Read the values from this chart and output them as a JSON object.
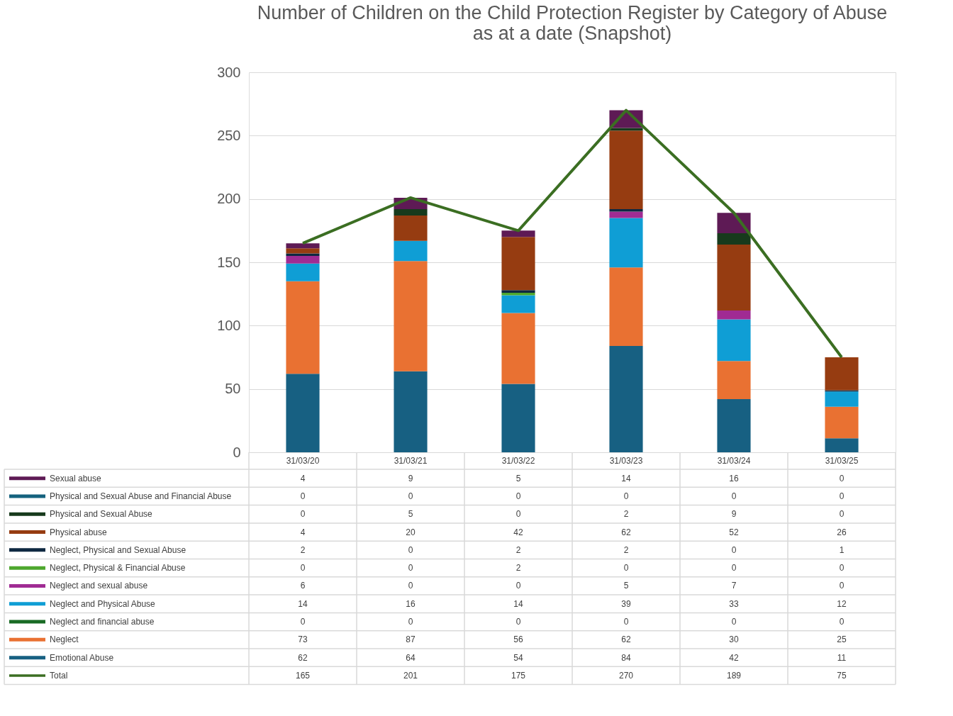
{
  "chart_data": {
    "type": "bar",
    "title": [
      "Number of Children on the Child Protection Register by Category of Abuse",
      "as at a date (Snapshot)"
    ],
    "categories": [
      "31/03/20",
      "31/03/21",
      "31/03/22",
      "31/03/23",
      "31/03/24",
      "31/03/25"
    ],
    "stacked": true,
    "ylim": [
      0,
      300
    ],
    "yticks": [
      0,
      50,
      100,
      150,
      200,
      250,
      300
    ],
    "grid": "y",
    "legend": "bottom",
    "series": [
      {
        "name": "Emotional Abuse",
        "color": "#176082",
        "values": [
          62,
          64,
          54,
          84,
          42,
          11
        ],
        "value_labels": [
          "62",
          "64",
          "54",
          "84",
          "42",
          "11"
        ]
      },
      {
        "name": "Neglect",
        "color": "#e97132",
        "values": [
          73,
          87,
          56,
          62,
          30,
          25
        ],
        "value_labels": [
          "73",
          "87",
          "56",
          "62",
          "30",
          "25"
        ]
      },
      {
        "name": "Neglect and financial abuse",
        "color": "#196b24",
        "values": [
          0,
          0,
          0,
          0,
          0,
          0
        ],
        "value_labels": [
          "0",
          "0",
          "0",
          "0",
          "0",
          "0"
        ]
      },
      {
        "name": "Neglect and Physical Abuse",
        "color": "#0f9ed5",
        "values": [
          14,
          16,
          14,
          39,
          33,
          12
        ],
        "value_labels": [
          "14",
          "16",
          "14",
          "39",
          "33",
          "12"
        ]
      },
      {
        "name": "Neglect and sexual abuse",
        "color": "#a02b93",
        "values": [
          6,
          0,
          0,
          5,
          7,
          0
        ],
        "value_labels": [
          "6",
          "0",
          "0",
          "5",
          "7",
          "0"
        ]
      },
      {
        "name": "Neglect, Physical & Financial Abuse",
        "color": "#4ea72e",
        "values": [
          0,
          0,
          2,
          0,
          0,
          0
        ],
        "value_labels": [
          "0",
          "0",
          "2",
          "0",
          "0",
          "0"
        ]
      },
      {
        "name": "Neglect, Physical and Sexual Abuse",
        "color": "#0e2841",
        "values": [
          2,
          0,
          2,
          2,
          0,
          1
        ],
        "value_labels": [
          "2",
          "0",
          "2",
          "2",
          "0",
          "1"
        ]
      },
      {
        "name": "Physical abuse",
        "color": "#963c11",
        "values": [
          4,
          20,
          42,
          62,
          52,
          26
        ],
        "value_labels": [
          "4",
          "20",
          "42",
          "62",
          "52",
          "26"
        ]
      },
      {
        "name": "Physical and Sexual Abuse",
        "color": "#173a1c",
        "values": [
          0,
          5,
          0,
          2,
          9,
          0
        ],
        "value_labels": [
          "0",
          "5",
          "0",
          "2",
          "9",
          "0"
        ]
      },
      {
        "name": "Physical and Sexual Abuse and Financial Abuse",
        "color": "#14627e",
        "values": [
          0,
          0,
          0,
          0,
          0,
          0
        ],
        "value_labels": [
          "0",
          "0",
          "0",
          "0",
          "0",
          "0"
        ]
      },
      {
        "name": "Sexual abuse",
        "color": "#5e1a55",
        "values": [
          4,
          9,
          5,
          14,
          16,
          0
        ],
        "value_labels": [
          "4",
          "9",
          "5",
          "14",
          "16",
          "0"
        ]
      },
      {
        "name": "Total",
        "type": "line",
        "color": "#3b6e22",
        "values": [
          165,
          201,
          175,
          270,
          189,
          75
        ],
        "value_labels": [
          "165",
          "201",
          "175",
          "270",
          "189",
          "75"
        ]
      }
    ]
  }
}
